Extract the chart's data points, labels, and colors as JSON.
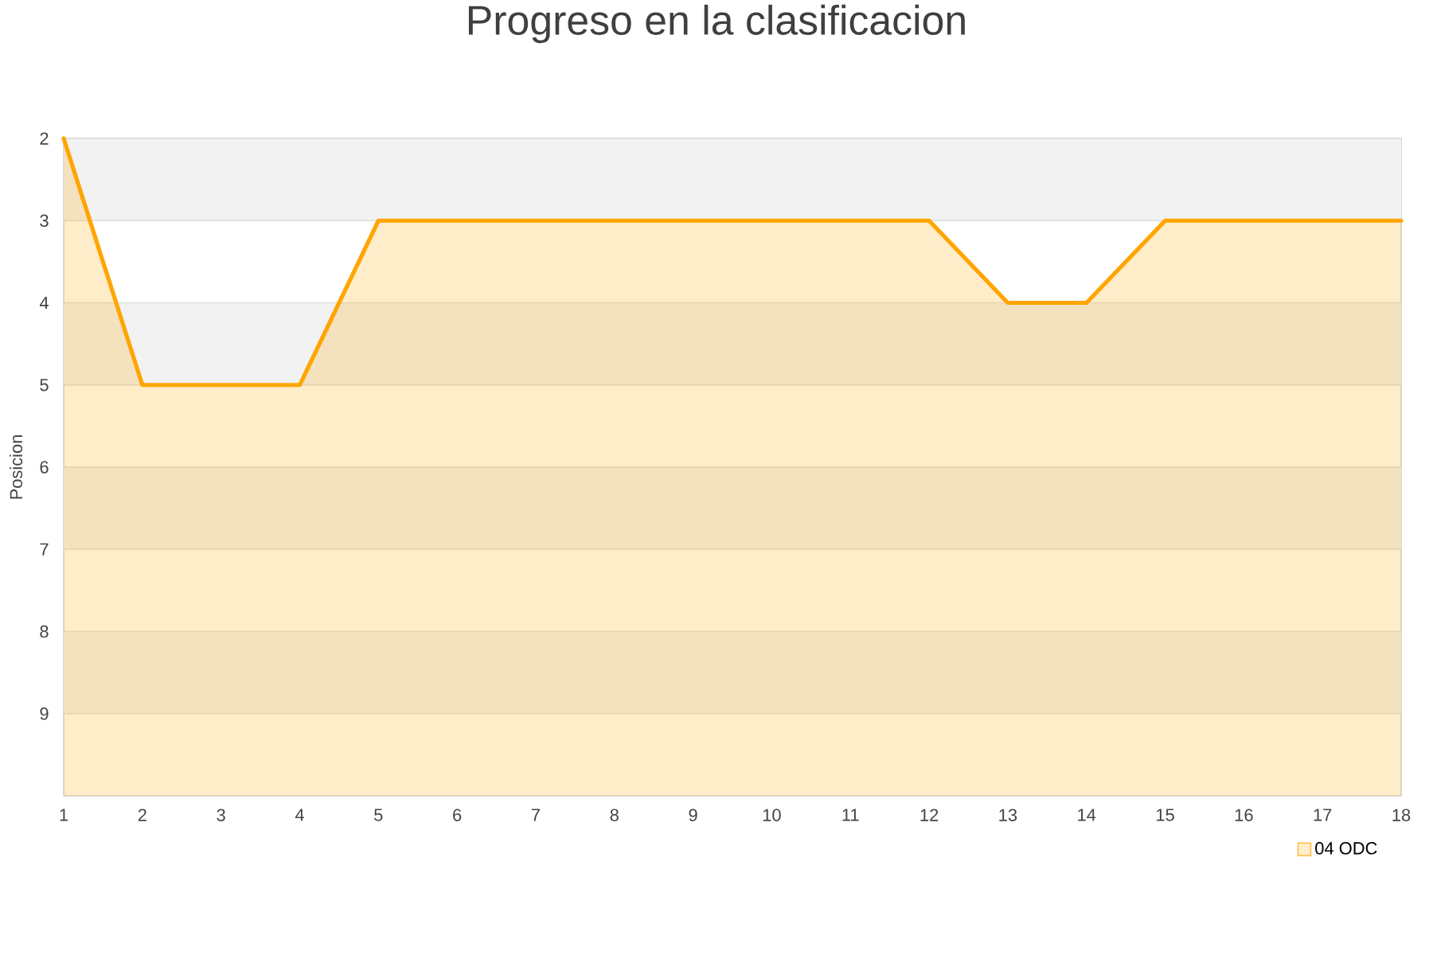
{
  "chart_data": {
    "type": "line",
    "title": "Progreso en la clasificacion",
    "ylabel": "Posicion",
    "x": [
      1,
      2,
      3,
      4,
      5,
      6,
      7,
      8,
      9,
      10,
      11,
      12,
      13,
      14,
      15,
      16,
      17,
      18
    ],
    "series": [
      {
        "name": "04 ODC",
        "color": "#ffa500",
        "values": [
          2,
          5,
          5,
          5,
          3,
          3,
          3,
          3,
          3,
          3,
          3,
          3,
          4,
          4,
          3,
          3,
          3,
          3
        ],
        "upper": [
          2,
          5,
          5,
          5,
          3,
          3,
          3,
          3,
          3,
          3,
          3,
          3,
          4,
          4,
          3,
          3,
          3,
          3
        ],
        "lower": [
          10,
          10,
          10,
          10,
          10,
          10,
          10,
          10,
          10,
          10,
          10,
          10,
          10,
          10,
          10,
          10,
          10,
          10
        ]
      }
    ],
    "xlim": [
      1,
      18
    ],
    "xticks": [
      1,
      2,
      3,
      4,
      5,
      6,
      7,
      8,
      9,
      10,
      11,
      12,
      13,
      14,
      15,
      16,
      17,
      18
    ],
    "ylim": [
      10,
      2
    ],
    "yticks": [
      2,
      3,
      4,
      5,
      6,
      7,
      8,
      9
    ],
    "grid": "y",
    "legend": "bottom right",
    "bands": [
      {
        "axis": "y",
        "from": 2,
        "to": 3,
        "color": "#f2f2f2"
      },
      {
        "axis": "y",
        "from": 4,
        "to": 5,
        "color": "#f2f2f2"
      },
      {
        "axis": "y",
        "from": 6,
        "to": 7,
        "color": "#f2f2f2"
      },
      {
        "axis": "y",
        "from": 8,
        "to": 9,
        "color": "#f2f2f2"
      }
    ]
  }
}
